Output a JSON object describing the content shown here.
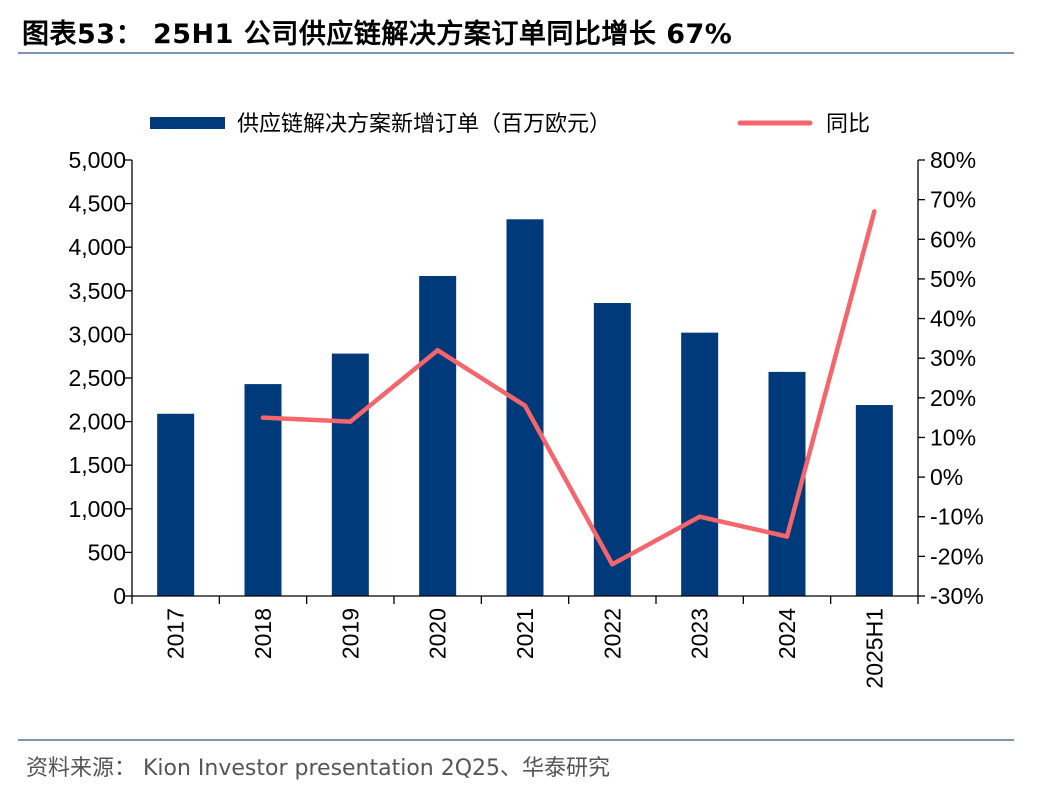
{
  "header": {
    "title": "图表53： 25H1 公司供应链解决方案订单同比增长 67%"
  },
  "footer": {
    "source": "资料来源： Kion Investor presentation 2Q25、华泰研究"
  },
  "colors": {
    "bar": "#003a7a",
    "line": "#f4666b",
    "rule": "#7f93b5"
  },
  "chart_data": {
    "type": "bar",
    "title": "",
    "categories": [
      "2017",
      "2018",
      "2019",
      "2020",
      "2021",
      "2022",
      "2023",
      "2024",
      "2025H1"
    ],
    "series": [
      {
        "name": "供应链解决方案新增订单（百万欧元）",
        "type": "bar",
        "axis": "left",
        "values": [
          2090,
          2430,
          2780,
          3670,
          4320,
          3360,
          3020,
          2570,
          2190
        ]
      },
      {
        "name": "同比",
        "type": "line",
        "axis": "right",
        "unit": "%",
        "values": [
          null,
          15,
          14,
          32,
          18,
          -22,
          -10,
          -15,
          67
        ]
      }
    ],
    "y_left": {
      "min": 0,
      "max": 5000,
      "step": 500,
      "ticks": [
        "0",
        "500",
        "1,000",
        "1,500",
        "2,000",
        "2,500",
        "3,000",
        "3,500",
        "4,000",
        "4,500",
        "5,000"
      ]
    },
    "y_right": {
      "min": -30,
      "max": 80,
      "step": 10,
      "ticks": [
        "-30%",
        "-20%",
        "-10%",
        "0%",
        "10%",
        "20%",
        "30%",
        "40%",
        "50%",
        "60%",
        "70%",
        "80%"
      ]
    },
    "legend_position": "top",
    "grid": false,
    "x_tick_rotation": "vertical"
  }
}
